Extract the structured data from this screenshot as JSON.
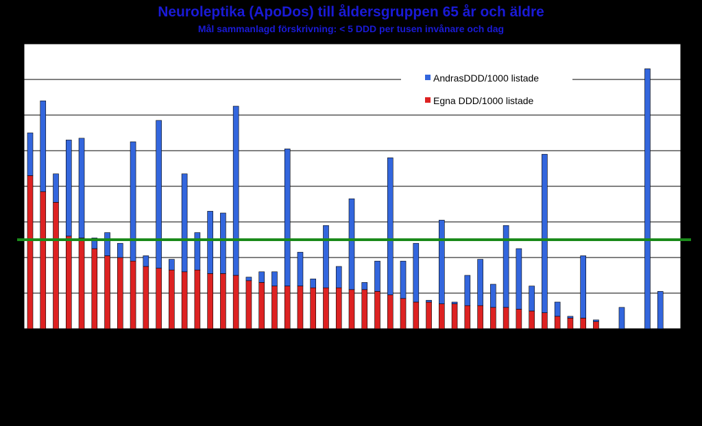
{
  "title": "Neuroleptika (ApoDos) till åldersgruppen 65 år och äldre",
  "subtitle": "Mål sammanlagd förskrivning: < 5 DDD per tusen invånare och dag",
  "chart_data": {
    "type": "bar",
    "stacked": true,
    "ylim": [
      0,
      16
    ],
    "grid": "horizontal",
    "target_line": {
      "value": 5,
      "color": "#1a8a1a"
    },
    "legend_position": "top-right",
    "series": [
      {
        "name": "AndrasDDD/1000 listade",
        "color": "#3366dd",
        "values": [
          2.4,
          5.1,
          1.6,
          5.4,
          5.6,
          0.6,
          1.3,
          0.8,
          6.7,
          0.6,
          8.3,
          0.6,
          5.5,
          2.1,
          3.5,
          3.4,
          9.5,
          0.2,
          0.6,
          0.8,
          7.7,
          1.9,
          0.5,
          3.5,
          1.2,
          5.1,
          0.4,
          1.7,
          7.7,
          2.1,
          3.3,
          0.1,
          4.7,
          0.1,
          1.7,
          2.6,
          1.3,
          4.6,
          3.4,
          1.4,
          8.9,
          0.8,
          0.1,
          3.5,
          0.1,
          0.0,
          1.2,
          0.0,
          14.6,
          2.1
        ]
      },
      {
        "name": "Egna DDD/1000 listade",
        "color": "#dd2222",
        "values": [
          8.6,
          7.7,
          7.1,
          5.2,
          5.1,
          4.5,
          4.1,
          4.0,
          3.8,
          3.5,
          3.4,
          3.3,
          3.2,
          3.3,
          3.1,
          3.1,
          3.0,
          2.7,
          2.6,
          2.4,
          2.4,
          2.4,
          2.3,
          2.3,
          2.3,
          2.2,
          2.2,
          2.1,
          1.9,
          1.7,
          1.5,
          1.5,
          1.4,
          1.4,
          1.3,
          1.3,
          1.2,
          1.2,
          1.1,
          1.0,
          0.9,
          0.7,
          0.6,
          0.6,
          0.4,
          0.0,
          0.0,
          0.0,
          0.0,
          0.0
        ]
      }
    ]
  }
}
